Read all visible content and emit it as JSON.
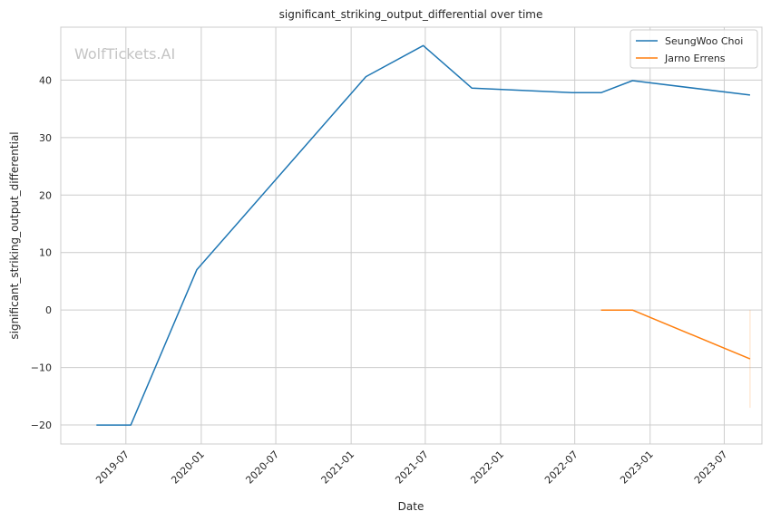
{
  "chart_data": {
    "type": "line",
    "title": "significant_striking_output_differential over time",
    "xlabel": "Date",
    "ylabel": "significant_striking_output_differential",
    "watermark": "WolfTickets.AI",
    "x_tick_labels": [
      "2019-07",
      "2020-01",
      "2020-07",
      "2021-01",
      "2021-07",
      "2022-01",
      "2022-07",
      "2023-01",
      "2023-07"
    ],
    "y_ticks": [
      -20,
      -10,
      0,
      10,
      20,
      30,
      40
    ],
    "y_tick_labels": [
      "−20",
      "−10",
      "0",
      "10",
      "20",
      "30",
      "40"
    ],
    "xlim": [
      "2019-01-23",
      "2023-10-01"
    ],
    "ylim": [
      -23.3,
      49.2
    ],
    "grid": true,
    "legend_position": "top-right",
    "series": [
      {
        "name": "SeungWoo Choi",
        "color": "#1f77b4",
        "x": [
          "2019-04-20",
          "2019-07-13",
          "2019-12-21",
          "2021-02-06",
          "2021-06-26",
          "2021-10-23",
          "2022-06-25",
          "2022-09-03",
          "2022-11-19",
          "2023-09-02"
        ],
        "y": [
          -20,
          -20,
          7,
          40.6,
          46,
          38.6,
          37.8,
          37.8,
          39.9,
          37.4
        ]
      },
      {
        "name": "Jarno Errens",
        "color": "#ff7f0e",
        "x": [
          "2022-09-03",
          "2022-11-19",
          "2023-09-02"
        ],
        "y": [
          0,
          0,
          -8.5
        ]
      }
    ],
    "band": {
      "color": "#ff7f0e",
      "x": "2023-09-02",
      "y_range": [
        -17,
        0
      ]
    }
  }
}
